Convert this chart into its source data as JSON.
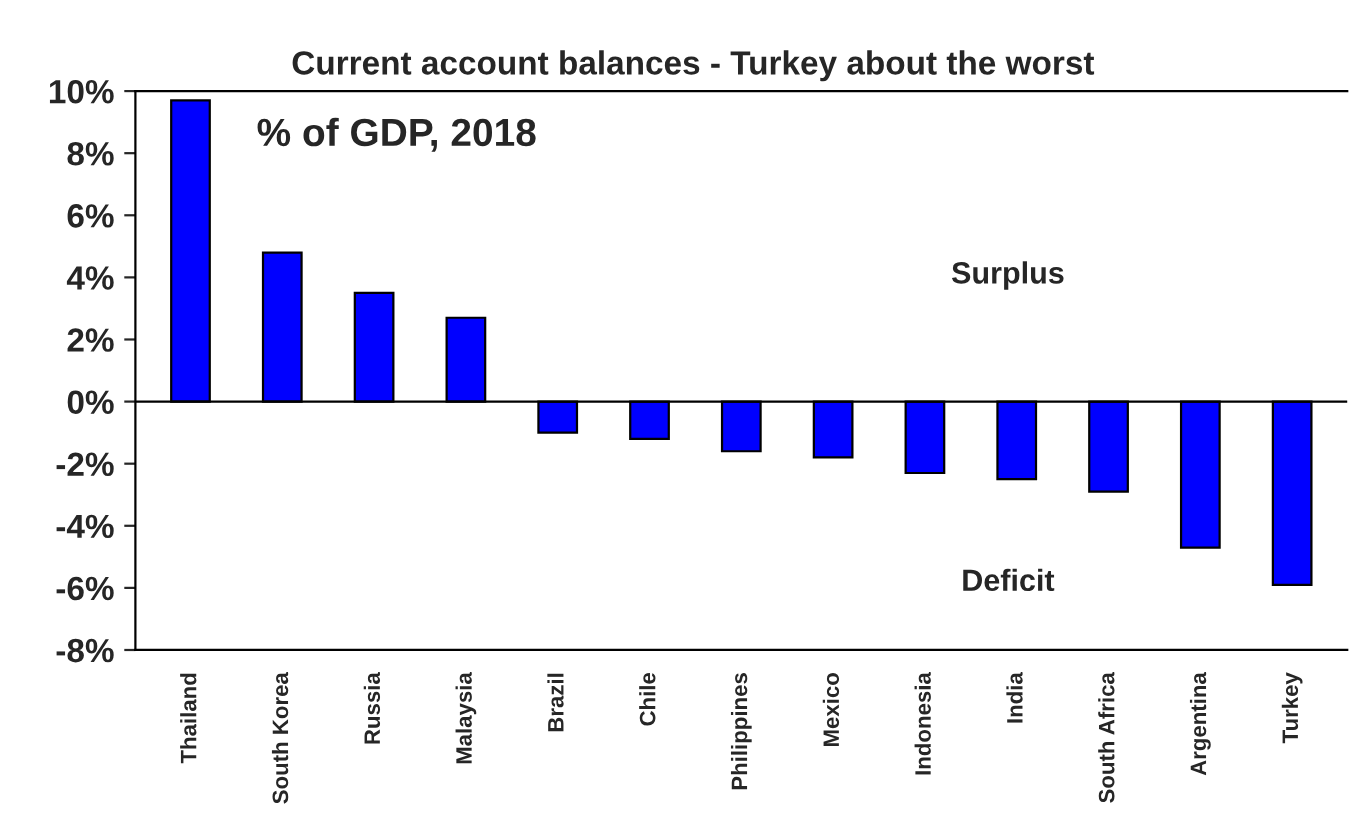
{
  "chart_data": {
    "type": "bar",
    "title": "Current account balances - Turkey about the worst",
    "categories": [
      "Thailand",
      "South Korea",
      "Russia",
      "Malaysia",
      "Brazil",
      "Chile",
      "Philippines",
      "Mexico",
      "Indonesia",
      "India",
      "South Africa",
      "Argentina",
      "Turkey"
    ],
    "values": [
      9.7,
      4.8,
      3.5,
      2.7,
      -1.0,
      -1.2,
      -1.6,
      -1.8,
      -2.3,
      -2.5,
      -2.9,
      -4.7,
      -5.9
    ],
    "color": "#0000ff",
    "ylim": [
      -8,
      10
    ],
    "yticks": [
      {
        "value": -8,
        "label": "-8%"
      },
      {
        "value": -6,
        "label": "-6%"
      },
      {
        "value": -4,
        "label": "-4%"
      },
      {
        "value": -2,
        "label": "-2%"
      },
      {
        "value": 0,
        "label": "0%"
      },
      {
        "value": 2,
        "label": "2%"
      },
      {
        "value": 4,
        "label": "4%"
      },
      {
        "value": 6,
        "label": "6%"
      },
      {
        "value": 8,
        "label": "8%"
      },
      {
        "value": 10,
        "label": "10%"
      }
    ],
    "ref_lines": [
      {
        "axis": "y",
        "value": 0,
        "color": "#000000"
      }
    ],
    "annotations": [
      "% of GDP, 2018",
      "Surplus",
      "Deficit"
    ],
    "grid": false
  }
}
